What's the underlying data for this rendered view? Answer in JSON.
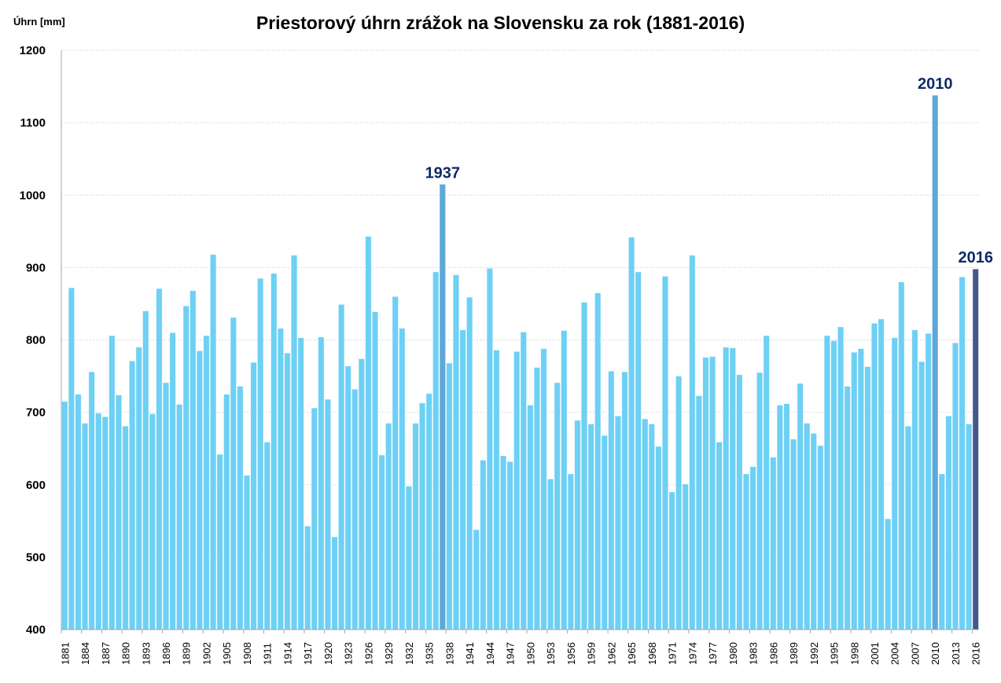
{
  "chart_data": {
    "type": "bar",
    "title": "Priestorový úhrn zrážok na Slovensku za rok (1881-2016)",
    "xlabel": "",
    "ylabel": "Úhrn [mm]",
    "ylim": [
      400,
      1200
    ],
    "yticks": [
      400,
      500,
      600,
      700,
      800,
      900,
      1000,
      1100,
      1200
    ],
    "grid": true,
    "legend": "none",
    "start_year": 1881,
    "xtick_step": 3,
    "values": [
      715,
      872,
      725,
      685,
      756,
      699,
      694,
      806,
      724,
      681,
      771,
      790,
      840,
      698,
      871,
      741,
      810,
      711,
      847,
      868,
      785,
      806,
      918,
      642,
      725,
      831,
      736,
      613,
      769,
      885,
      659,
      892,
      816,
      782,
      917,
      803,
      543,
      706,
      804,
      718,
      528,
      849,
      764,
      732,
      774,
      943,
      839,
      641,
      685,
      860,
      816,
      598,
      685,
      713,
      726,
      894,
      1015,
      768,
      890,
      814,
      859,
      538,
      634,
      899,
      786,
      640,
      632,
      784,
      811,
      710,
      762,
      788,
      608,
      741,
      813,
      615,
      689,
      852,
      684,
      865,
      668,
      757,
      695,
      756,
      942,
      894,
      691,
      684,
      653,
      888,
      590,
      750,
      601,
      917,
      723,
      776,
      777,
      659,
      790,
      789,
      752,
      615,
      625,
      755,
      806,
      638,
      710,
      712,
      663,
      740,
      685,
      671,
      654,
      806,
      799,
      818,
      736,
      783,
      788,
      763,
      823,
      829,
      553,
      803,
      880,
      681,
      814,
      770,
      809,
      1138,
      615,
      695,
      796,
      887,
      684,
      898
    ],
    "highlights": [
      {
        "year": 1937,
        "label": "1937",
        "color": "#5ea7d8"
      },
      {
        "year": 2010,
        "label": "2010",
        "color": "#5ea7d8"
      },
      {
        "year": 2016,
        "label": "2016",
        "color": "#44598a"
      }
    ],
    "colors": {
      "bar": "#6dd0f4",
      "annotation": "#0f2a66",
      "grid": "#d9d9d9",
      "axis": "#a6a6a6"
    }
  }
}
